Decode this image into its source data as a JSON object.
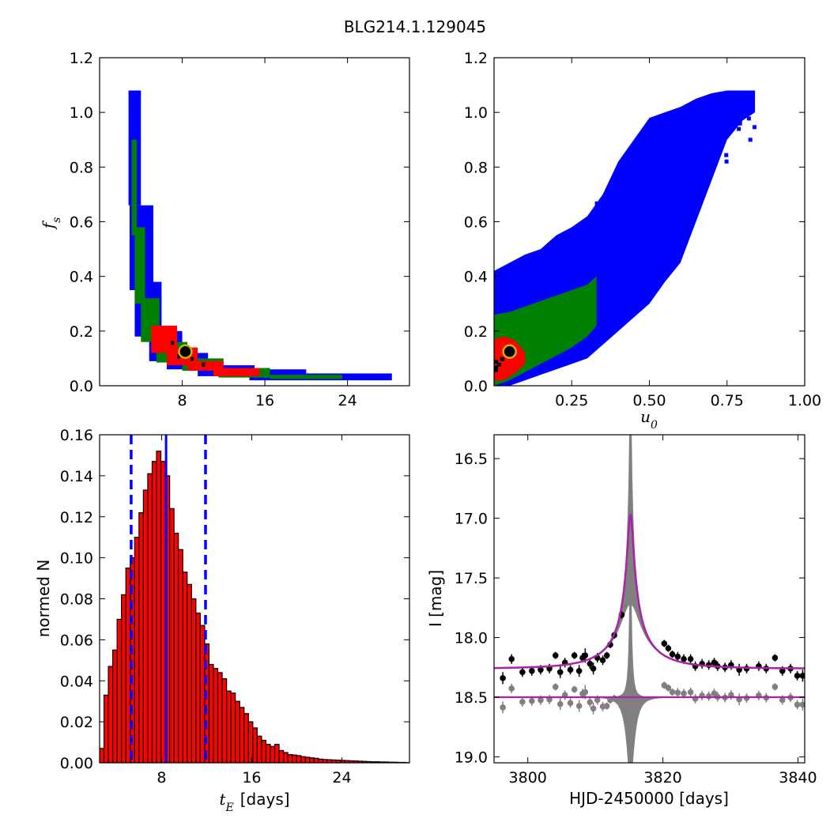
{
  "figure": {
    "title": "BLG214.1.129045"
  },
  "chart_data": [
    {
      "id": "fs_vs_tE",
      "type": "heatmap",
      "xlim": [
        0,
        30
      ],
      "ylim": [
        0,
        1.2
      ],
      "xticks": [
        8,
        16,
        24
      ],
      "xtick_labels": [
        "8",
        "16",
        "24"
      ],
      "yticks": [
        0,
        0.2,
        0.4,
        0.6,
        0.8,
        1.0,
        1.2
      ],
      "ytick_labels": [
        "0.0",
        "0.2",
        "0.4",
        "0.6",
        "0.8",
        "1.0",
        "1.2"
      ],
      "xlabel": "",
      "ylabel_sym": "f",
      "ylabel_sub": "s",
      "grid": false,
      "best_fit": {
        "x": 8.3,
        "y": 0.125
      },
      "bands": {
        "blue": [
          [
            2.8,
            4.0,
            0.66,
            1.08
          ],
          [
            2.9,
            5.2,
            0.35,
            0.66
          ],
          [
            3.4,
            6.0,
            0.18,
            0.38
          ],
          [
            4.8,
            8.0,
            0.09,
            0.2
          ],
          [
            6.5,
            10.5,
            0.06,
            0.12
          ],
          [
            9.5,
            15.0,
            0.035,
            0.075
          ],
          [
            14.5,
            20.0,
            0.02,
            0.06
          ],
          [
            20.0,
            28.3,
            0.02,
            0.045
          ]
        ],
        "green": [
          [
            3.1,
            3.6,
            0.55,
            0.9
          ],
          [
            3.4,
            4.4,
            0.3,
            0.58
          ],
          [
            4.0,
            5.8,
            0.16,
            0.32
          ],
          [
            5.5,
            8.5,
            0.085,
            0.16
          ],
          [
            8.0,
            12.0,
            0.055,
            0.1
          ],
          [
            11.5,
            16.5,
            0.03,
            0.065
          ],
          [
            16.5,
            23.5,
            0.025,
            0.04
          ]
        ],
        "red": [
          [
            5.0,
            7.5,
            0.12,
            0.22
          ],
          [
            6.5,
            9.5,
            0.075,
            0.14
          ],
          [
            8.5,
            12.0,
            0.055,
            0.09
          ],
          [
            11.0,
            15.5,
            0.035,
            0.065
          ]
        ],
        "black": [
          [
            6.9,
            7.2,
            0.15,
            0.165
          ],
          [
            7.5,
            7.8,
            0.1,
            0.115
          ],
          [
            8.8,
            9.1,
            0.09,
            0.105
          ],
          [
            9.9,
            10.2,
            0.07,
            0.085
          ]
        ]
      }
    },
    {
      "id": "fs_vs_u0",
      "type": "heatmap",
      "xlim": [
        0,
        1.0
      ],
      "ylim": [
        0,
        1.2
      ],
      "xticks": [
        0.25,
        0.5,
        0.75,
        1.0
      ],
      "xtick_labels": [
        "0.25",
        "0.50",
        "0.75",
        "1.00"
      ],
      "yticks": [
        0,
        0.2,
        0.4,
        0.6,
        0.8,
        1.0,
        1.2
      ],
      "ytick_labels": [
        "0.0",
        "0.2",
        "0.4",
        "0.6",
        "0.8",
        "1.0",
        "1.2"
      ],
      "xlabel_sym": "u",
      "xlabel_sub": "0",
      "ylabel": "",
      "grid": false,
      "best_fit": {
        "x": 0.05,
        "y": 0.125
      },
      "blue_profile": [
        [
          0.0,
          0.0,
          0.42
        ],
        [
          0.05,
          0.0,
          0.45
        ],
        [
          0.1,
          0.02,
          0.48
        ],
        [
          0.15,
          0.04,
          0.5
        ],
        [
          0.2,
          0.06,
          0.55
        ],
        [
          0.25,
          0.08,
          0.58
        ],
        [
          0.3,
          0.1,
          0.62
        ],
        [
          0.35,
          0.15,
          0.7
        ],
        [
          0.4,
          0.2,
          0.82
        ],
        [
          0.45,
          0.25,
          0.9
        ],
        [
          0.5,
          0.3,
          0.98
        ],
        [
          0.55,
          0.38,
          1.0
        ],
        [
          0.6,
          0.45,
          1.02
        ],
        [
          0.65,
          0.6,
          1.05
        ],
        [
          0.7,
          0.75,
          1.07
        ],
        [
          0.75,
          0.9,
          1.08
        ],
        [
          0.8,
          0.97,
          1.08
        ],
        [
          0.84,
          1.0,
          1.08
        ]
      ],
      "green_profile": [
        [
          0.0,
          0.0,
          0.26
        ],
        [
          0.05,
          0.02,
          0.27
        ],
        [
          0.1,
          0.05,
          0.29
        ],
        [
          0.15,
          0.08,
          0.31
        ],
        [
          0.2,
          0.11,
          0.33
        ],
        [
          0.25,
          0.14,
          0.35
        ],
        [
          0.3,
          0.18,
          0.37
        ],
        [
          0.33,
          0.22,
          0.4
        ]
      ],
      "red_profile": [
        [
          0.0,
          0.02,
          0.17
        ],
        [
          0.03,
          0.02,
          0.18
        ],
        [
          0.06,
          0.04,
          0.17
        ],
        [
          0.08,
          0.06,
          0.15
        ],
        [
          0.1,
          0.08,
          0.12
        ]
      ],
      "black_cells": [
        [
          0.0,
          0.05
        ],
        [
          0.0,
          0.06
        ],
        [
          0.0,
          0.08
        ],
        [
          0.01,
          0.07
        ],
        [
          0.02,
          0.09
        ]
      ]
    },
    {
      "id": "tE_hist",
      "type": "bar",
      "xlim": [
        2.5,
        30
      ],
      "ylim": [
        0,
        0.16
      ],
      "xticks": [
        8,
        16,
        24
      ],
      "xtick_labels": [
        "8",
        "16",
        "24"
      ],
      "yticks": [
        0,
        0.02,
        0.04,
        0.06,
        0.08,
        0.1,
        0.12,
        0.14,
        0.16
      ],
      "ytick_labels": [
        "0.00",
        "0.02",
        "0.04",
        "0.06",
        "0.08",
        "0.10",
        "0.12",
        "0.14",
        "0.16"
      ],
      "xlabel_sym": "t",
      "xlabel_sub": "E",
      "xlabel_text": "[days]",
      "ylabel": "normed N",
      "grid": false,
      "bin_start": 2.5,
      "bin_width": 0.3885,
      "values": [
        0.007,
        0.033,
        0.047,
        0.055,
        0.07,
        0.082,
        0.095,
        0.1,
        0.11,
        0.122,
        0.133,
        0.141,
        0.147,
        0.152,
        0.147,
        0.14,
        0.124,
        0.112,
        0.104,
        0.093,
        0.087,
        0.08,
        0.073,
        0.067,
        0.058,
        0.048,
        0.046,
        0.044,
        0.041,
        0.035,
        0.034,
        0.03,
        0.027,
        0.024,
        0.02,
        0.017,
        0.013,
        0.011,
        0.009,
        0.008,
        0.009,
        0.006,
        0.005,
        0.004,
        0.0038,
        0.0035,
        0.003,
        0.0027,
        0.0024,
        0.0022,
        0.0018,
        0.0016,
        0.0015,
        0.0014,
        0.0013,
        0.0012,
        0.0011,
        0.001,
        0.0009,
        0.0008,
        0.0007,
        0.0006,
        0.0005,
        0.0005,
        0.0004,
        0.0004,
        0.0003,
        0.0003,
        0.0002,
        0.0002,
        0.0001
      ],
      "median": 8.4,
      "bounds": [
        5.3,
        11.9
      ]
    },
    {
      "id": "lightcurve",
      "type": "line",
      "xlim": [
        3795,
        3841
      ],
      "ylim": [
        19.05,
        16.3
      ],
      "xticks": [
        3800,
        3820,
        3840
      ],
      "xtick_labels": [
        "3800",
        "3820",
        "3840"
      ],
      "yticks": [
        16.5,
        17.0,
        17.5,
        18.0,
        18.5,
        19.0
      ],
      "ytick_labels": [
        "16.5",
        "17.0",
        "17.5",
        "18.0",
        "18.5",
        "19.0"
      ],
      "xlabel": "HJD-2450000 [days]",
      "ylabel": "I [mag]",
      "grid": false,
      "model": {
        "t0": 3815.2,
        "u0": 0.05,
        "tE": 8.4,
        "fs": 0.12,
        "baseline": 18.26,
        "baseline_slope": -0.0002
      },
      "residual_offset": 18.5,
      "points_t": [
        3796.3,
        3797.6,
        3799.2,
        3800.6,
        3801.9,
        3803.2,
        3804.1,
        3804.8,
        3805.5,
        3806.3,
        3806.9,
        3807.6,
        3808.1,
        3808.5,
        3809.2,
        3809.7,
        3810.3,
        3811.1,
        3811.7,
        3812.2,
        3812.8,
        3813.9,
        3820.2,
        3820.8,
        3821.4,
        3822.2,
        3823.1,
        3824.1,
        3824.8,
        3825.8,
        3826.8,
        3827.6,
        3828.1,
        3829.2,
        3830.1,
        3831.3,
        3832.4,
        3834.2,
        3835.3,
        3836.6,
        3837.7,
        3838.9,
        3839.9,
        3840.7
      ],
      "points_mag": [
        18.34,
        18.18,
        18.29,
        18.28,
        18.27,
        18.26,
        18.15,
        18.29,
        18.21,
        18.27,
        18.15,
        18.28,
        18.17,
        18.15,
        18.22,
        18.26,
        18.17,
        18.19,
        18.15,
        18.06,
        17.98,
        17.81,
        18.05,
        18.09,
        18.14,
        18.16,
        18.18,
        18.18,
        18.24,
        18.22,
        18.23,
        18.21,
        18.24,
        18.25,
        18.23,
        18.27,
        18.26,
        18.24,
        18.26,
        18.17,
        18.28,
        18.26,
        18.32,
        18.32
      ],
      "points_err": [
        0.05,
        0.04,
        0.04,
        0.04,
        0.04,
        0.04,
        0.03,
        0.05,
        0.04,
        0.04,
        0.03,
        0.05,
        0.04,
        0.06,
        0.04,
        0.05,
        0.04,
        0.04,
        0.03,
        0.03,
        0.03,
        0.03,
        0.03,
        0.03,
        0.03,
        0.04,
        0.04,
        0.04,
        0.04,
        0.04,
        0.04,
        0.04,
        0.04,
        0.04,
        0.04,
        0.05,
        0.04,
        0.04,
        0.04,
        0.03,
        0.04,
        0.04,
        0.04,
        0.05
      ]
    }
  ]
}
